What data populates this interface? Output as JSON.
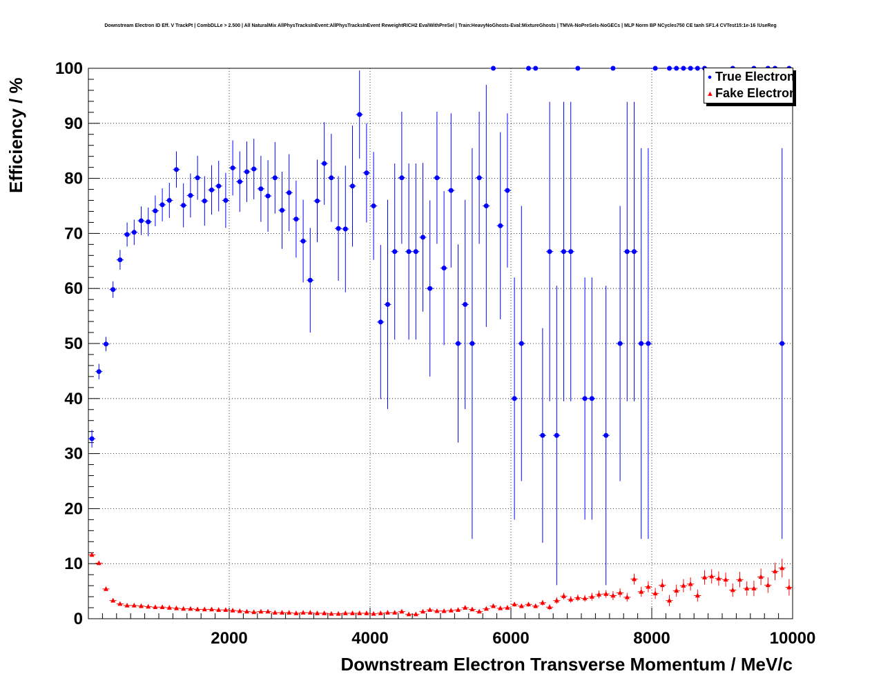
{
  "chart_data": {
    "type": "scatter",
    "title": "Downstream Electron ID Eff. V TrackPt | CombDLLe > 2.500 | All NaturalMix AllPhysTracksInEvent:AllPhysTracksInEvent ReweightRICH2 EvalWithPreSel | Train:HeavyNoGhosts-Eval:MixtureGhosts | TMVA-NoPreSels-NoGECs | MLP Norm BP NCycles750 CE tanh SF1.4 CVTest15:1e-16 !UseReg",
    "xlabel": "Downstream Electron Transverse Momentum / MeV/c",
    "ylabel": "Efficiency / %",
    "xlim": [
      0,
      10000
    ],
    "ylim": [
      0,
      100
    ],
    "x_ticks": [
      2000,
      4000,
      6000,
      8000,
      10000
    ],
    "y_ticks": [
      0,
      10,
      20,
      30,
      40,
      50,
      60,
      70,
      80,
      90,
      100
    ],
    "grid": true,
    "legend_position": "top-right",
    "bin_width": 100,
    "series": [
      {
        "name": "True Electron",
        "color": "#0000ff",
        "marker": "circle",
        "points": [
          {
            "x": 50,
            "y": 32.7,
            "err": 1.6
          },
          {
            "x": 150,
            "y": 44.9,
            "err": 1.4
          },
          {
            "x": 250,
            "y": 49.9,
            "err": 1.3
          },
          {
            "x": 350,
            "y": 59.8,
            "err": 1.5
          },
          {
            "x": 450,
            "y": 65.2,
            "err": 1.8
          },
          {
            "x": 550,
            "y": 69.8,
            "err": 2.2
          },
          {
            "x": 650,
            "y": 70.2,
            "err": 2.3
          },
          {
            "x": 750,
            "y": 72.3,
            "err": 2.6
          },
          {
            "x": 850,
            "y": 72.1,
            "err": 2.6
          },
          {
            "x": 950,
            "y": 74.1,
            "err": 2.8
          },
          {
            "x": 1050,
            "y": 75.2,
            "err": 3.0
          },
          {
            "x": 1150,
            "y": 76.0,
            "err": 3.2
          },
          {
            "x": 1250,
            "y": 81.6,
            "err": 3.3
          },
          {
            "x": 1350,
            "y": 75.1,
            "err": 4.0
          },
          {
            "x": 1450,
            "y": 76.9,
            "err": 4.0
          },
          {
            "x": 1550,
            "y": 80.1,
            "err": 4.0
          },
          {
            "x": 1650,
            "y": 75.9,
            "err": 4.5
          },
          {
            "x": 1750,
            "y": 77.9,
            "err": 4.5
          },
          {
            "x": 1850,
            "y": 78.6,
            "err": 4.6
          },
          {
            "x": 1950,
            "y": 76.0,
            "err": 5.0
          },
          {
            "x": 2050,
            "y": 81.9,
            "err": 5.0
          },
          {
            "x": 2150,
            "y": 79.4,
            "err": 5.5
          },
          {
            "x": 2250,
            "y": 81.2,
            "err": 5.5
          },
          {
            "x": 2350,
            "y": 81.7,
            "err": 5.5
          },
          {
            "x": 2450,
            "y": 78.1,
            "err": 6.0
          },
          {
            "x": 2550,
            "y": 76.8,
            "err": 6.5
          },
          {
            "x": 2650,
            "y": 80.1,
            "err": 6.5
          },
          {
            "x": 2750,
            "y": 74.2,
            "err": 7.0
          },
          {
            "x": 2850,
            "y": 77.4,
            "err": 7.0
          },
          {
            "x": 2950,
            "y": 72.6,
            "err": 7.0
          },
          {
            "x": 3050,
            "y": 68.6,
            "err": 7.5
          },
          {
            "x": 3150,
            "y": 61.5,
            "err": 9.5
          },
          {
            "x": 3250,
            "y": 75.9,
            "err": 7.5
          },
          {
            "x": 3350,
            "y": 82.7,
            "err": 7.5
          },
          {
            "x": 3450,
            "y": 80.1,
            "err": 8.0
          },
          {
            "x": 3550,
            "y": 70.9,
            "err": 9.5
          },
          {
            "x": 3650,
            "y": 70.8,
            "err": 11.5
          },
          {
            "x": 3750,
            "y": 78.6,
            "err": 11.0
          },
          {
            "x": 3850,
            "y": 91.6,
            "err": 8.0
          },
          {
            "x": 3950,
            "y": 81.0,
            "err": 9.0
          },
          {
            "x": 4050,
            "y": 75.0,
            "err": 9.8
          },
          {
            "x": 4150,
            "y": 53.9,
            "err": 14.0
          },
          {
            "x": 4250,
            "y": 57.1,
            "err": 19.0
          },
          {
            "x": 4350,
            "y": 66.7,
            "err": 16.0
          },
          {
            "x": 4450,
            "y": 80.1,
            "err": 12.0
          },
          {
            "x": 4550,
            "y": 66.7,
            "err": 16.0
          },
          {
            "x": 4650,
            "y": 66.7,
            "err": 16.0
          },
          {
            "x": 4750,
            "y": 69.3,
            "err": 13.5
          },
          {
            "x": 4850,
            "y": 60.0,
            "err": 16.0
          },
          {
            "x": 4950,
            "y": 80.1,
            "err": 12.0
          },
          {
            "x": 5050,
            "y": 63.7,
            "err": 14.0
          },
          {
            "x": 5150,
            "y": 77.8,
            "err": 14.0
          },
          {
            "x": 5250,
            "y": 50.0,
            "err": 18.0
          },
          {
            "x": 5350,
            "y": 57.1,
            "err": 19.0
          },
          {
            "x": 5450,
            "y": 50.0,
            "err": 35.5
          },
          {
            "x": 5550,
            "y": 80.1,
            "err": 12.0
          },
          {
            "x": 5650,
            "y": 75.0,
            "err": 22.0
          },
          {
            "x": 5750,
            "y": 100.0,
            "err": 0
          },
          {
            "x": 5850,
            "y": 71.4,
            "err": 17.0
          },
          {
            "x": 5950,
            "y": 77.8,
            "err": 14.0
          },
          {
            "x": 6050,
            "y": 40.0,
            "err": 22.0
          },
          {
            "x": 6150,
            "y": 50.0,
            "err": 25.0
          },
          {
            "x": 6250,
            "y": 100.0,
            "err": 0
          },
          {
            "x": 6350,
            "y": 100.0,
            "err": 0
          },
          {
            "x": 6450,
            "y": 33.3,
            "err": 19.5
          },
          {
            "x": 6550,
            "y": 66.7,
            "err": 27.2
          },
          {
            "x": 6650,
            "y": 33.3,
            "err": 27.2
          },
          {
            "x": 6750,
            "y": 66.7,
            "err": 27.2
          },
          {
            "x": 6850,
            "y": 66.7,
            "err": 27.2
          },
          {
            "x": 6950,
            "y": 100.0,
            "err": 0
          },
          {
            "x": 7050,
            "y": 40.0,
            "err": 22.0
          },
          {
            "x": 7150,
            "y": 40.0,
            "err": 22.0
          },
          {
            "x": 7350,
            "y": 33.3,
            "err": 27.2
          },
          {
            "x": 7450,
            "y": 100.0,
            "err": 0
          },
          {
            "x": 7550,
            "y": 50.0,
            "err": 25.0
          },
          {
            "x": 7650,
            "y": 66.7,
            "err": 27.2
          },
          {
            "x": 7750,
            "y": 66.7,
            "err": 27.2
          },
          {
            "x": 7850,
            "y": 50.0,
            "err": 35.5
          },
          {
            "x": 7950,
            "y": 50.0,
            "err": 35.5
          },
          {
            "x": 8050,
            "y": 100.0,
            "err": 0
          },
          {
            "x": 8250,
            "y": 100.0,
            "err": 0
          },
          {
            "x": 8350,
            "y": 100.0,
            "err": 0
          },
          {
            "x": 8450,
            "y": 100.0,
            "err": 0
          },
          {
            "x": 8550,
            "y": 100.0,
            "err": 0
          },
          {
            "x": 8650,
            "y": 100.0,
            "err": 0
          },
          {
            "x": 8750,
            "y": 100.0,
            "err": 0
          },
          {
            "x": 9150,
            "y": 100.0,
            "err": 0
          },
          {
            "x": 9450,
            "y": 100.0,
            "err": 0
          },
          {
            "x": 9650,
            "y": 100.0,
            "err": 0
          },
          {
            "x": 9750,
            "y": 100.0,
            "err": 0
          },
          {
            "x": 9850,
            "y": 50.0,
            "err": 35.5
          },
          {
            "x": 9950,
            "y": 100.0,
            "err": 0
          }
        ]
      },
      {
        "name": "Fake Electron",
        "color": "#ff0000",
        "marker": "triangle",
        "points": [
          {
            "x": 50,
            "y": 11.6,
            "err": 0.3
          },
          {
            "x": 150,
            "y": 10.1,
            "err": 0.3
          },
          {
            "x": 250,
            "y": 5.4,
            "err": 0.2
          },
          {
            "x": 350,
            "y": 3.3,
            "err": 0.15
          },
          {
            "x": 450,
            "y": 2.7,
            "err": 0.12
          },
          {
            "x": 550,
            "y": 2.4,
            "err": 0.1
          },
          {
            "x": 650,
            "y": 2.4,
            "err": 0.1
          },
          {
            "x": 750,
            "y": 2.3,
            "err": 0.1
          },
          {
            "x": 850,
            "y": 2.2,
            "err": 0.1
          },
          {
            "x": 950,
            "y": 2.1,
            "err": 0.1
          },
          {
            "x": 1050,
            "y": 2.1,
            "err": 0.1
          },
          {
            "x": 1150,
            "y": 2.0,
            "err": 0.1
          },
          {
            "x": 1250,
            "y": 1.9,
            "err": 0.1
          },
          {
            "x": 1350,
            "y": 1.8,
            "err": 0.1
          },
          {
            "x": 1450,
            "y": 1.8,
            "err": 0.1
          },
          {
            "x": 1550,
            "y": 1.7,
            "err": 0.1
          },
          {
            "x": 1650,
            "y": 1.7,
            "err": 0.1
          },
          {
            "x": 1750,
            "y": 1.7,
            "err": 0.1
          },
          {
            "x": 1850,
            "y": 1.6,
            "err": 0.1
          },
          {
            "x": 1950,
            "y": 1.6,
            "err": 0.1
          },
          {
            "x": 2050,
            "y": 1.5,
            "err": 0.1
          },
          {
            "x": 2150,
            "y": 1.4,
            "err": 0.1
          },
          {
            "x": 2250,
            "y": 1.3,
            "err": 0.1
          },
          {
            "x": 2350,
            "y": 1.2,
            "err": 0.1
          },
          {
            "x": 2450,
            "y": 1.3,
            "err": 0.1
          },
          {
            "x": 2550,
            "y": 1.3,
            "err": 0.1
          },
          {
            "x": 2650,
            "y": 1.1,
            "err": 0.1
          },
          {
            "x": 2750,
            "y": 1.1,
            "err": 0.1
          },
          {
            "x": 2850,
            "y": 1.1,
            "err": 0.1
          },
          {
            "x": 2950,
            "y": 1.0,
            "err": 0.1
          },
          {
            "x": 3050,
            "y": 1.1,
            "err": 0.1
          },
          {
            "x": 3150,
            "y": 1.1,
            "err": 0.1
          },
          {
            "x": 3250,
            "y": 1.0,
            "err": 0.1
          },
          {
            "x": 3350,
            "y": 1.0,
            "err": 0.1
          },
          {
            "x": 3450,
            "y": 0.9,
            "err": 0.1
          },
          {
            "x": 3550,
            "y": 0.9,
            "err": 0.1
          },
          {
            "x": 3650,
            "y": 1.0,
            "err": 0.1
          },
          {
            "x": 3750,
            "y": 1.0,
            "err": 0.1
          },
          {
            "x": 3850,
            "y": 1.0,
            "err": 0.1
          },
          {
            "x": 3950,
            "y": 1.0,
            "err": 0.1
          },
          {
            "x": 4050,
            "y": 0.9,
            "err": 0.1
          },
          {
            "x": 4150,
            "y": 1.0,
            "err": 0.1
          },
          {
            "x": 4250,
            "y": 1.1,
            "err": 0.1
          },
          {
            "x": 4350,
            "y": 1.1,
            "err": 0.1
          },
          {
            "x": 4450,
            "y": 1.3,
            "err": 0.2
          },
          {
            "x": 4550,
            "y": 0.8,
            "err": 0.2
          },
          {
            "x": 4650,
            "y": 0.8,
            "err": 0.2
          },
          {
            "x": 4750,
            "y": 1.3,
            "err": 0.2
          },
          {
            "x": 4850,
            "y": 1.6,
            "err": 0.2
          },
          {
            "x": 4950,
            "y": 1.4,
            "err": 0.2
          },
          {
            "x": 5050,
            "y": 1.4,
            "err": 0.2
          },
          {
            "x": 5150,
            "y": 1.5,
            "err": 0.2
          },
          {
            "x": 5250,
            "y": 1.6,
            "err": 0.2
          },
          {
            "x": 5350,
            "y": 2.0,
            "err": 0.3
          },
          {
            "x": 5450,
            "y": 1.7,
            "err": 0.3
          },
          {
            "x": 5550,
            "y": 1.3,
            "err": 0.3
          },
          {
            "x": 5650,
            "y": 1.8,
            "err": 0.3
          },
          {
            "x": 5750,
            "y": 2.3,
            "err": 0.3
          },
          {
            "x": 5850,
            "y": 1.9,
            "err": 0.3
          },
          {
            "x": 5950,
            "y": 2.0,
            "err": 0.4
          },
          {
            "x": 6050,
            "y": 2.6,
            "err": 0.4
          },
          {
            "x": 6150,
            "y": 2.3,
            "err": 0.4
          },
          {
            "x": 6250,
            "y": 2.6,
            "err": 0.4
          },
          {
            "x": 6350,
            "y": 2.3,
            "err": 0.4
          },
          {
            "x": 6450,
            "y": 2.9,
            "err": 0.5
          },
          {
            "x": 6550,
            "y": 2.1,
            "err": 0.5
          },
          {
            "x": 6650,
            "y": 3.3,
            "err": 0.6
          },
          {
            "x": 6750,
            "y": 4.1,
            "err": 0.6
          },
          {
            "x": 6850,
            "y": 3.5,
            "err": 0.6
          },
          {
            "x": 6950,
            "y": 3.8,
            "err": 0.6
          },
          {
            "x": 7050,
            "y": 3.7,
            "err": 0.6
          },
          {
            "x": 7150,
            "y": 4.0,
            "err": 0.7
          },
          {
            "x": 7250,
            "y": 4.4,
            "err": 0.7
          },
          {
            "x": 7350,
            "y": 4.5,
            "err": 0.7
          },
          {
            "x": 7450,
            "y": 4.2,
            "err": 0.8
          },
          {
            "x": 7550,
            "y": 4.7,
            "err": 0.8
          },
          {
            "x": 7650,
            "y": 3.9,
            "err": 0.8
          },
          {
            "x": 7750,
            "y": 7.2,
            "err": 1.0
          },
          {
            "x": 7850,
            "y": 4.9,
            "err": 0.9
          },
          {
            "x": 7950,
            "y": 5.8,
            "err": 1.0
          },
          {
            "x": 8050,
            "y": 4.6,
            "err": 1.0
          },
          {
            "x": 8150,
            "y": 6.1,
            "err": 1.1
          },
          {
            "x": 8250,
            "y": 3.3,
            "err": 1.0
          },
          {
            "x": 8350,
            "y": 5.1,
            "err": 1.1
          },
          {
            "x": 8450,
            "y": 6.0,
            "err": 1.2
          },
          {
            "x": 8550,
            "y": 6.3,
            "err": 1.2
          },
          {
            "x": 8650,
            "y": 4.2,
            "err": 1.1
          },
          {
            "x": 8750,
            "y": 7.5,
            "err": 1.3
          },
          {
            "x": 8850,
            "y": 7.7,
            "err": 1.3
          },
          {
            "x": 8950,
            "y": 7.3,
            "err": 1.3
          },
          {
            "x": 9050,
            "y": 7.1,
            "err": 1.3
          },
          {
            "x": 9150,
            "y": 5.2,
            "err": 1.2
          },
          {
            "x": 9250,
            "y": 7.1,
            "err": 1.4
          },
          {
            "x": 9350,
            "y": 5.5,
            "err": 1.3
          },
          {
            "x": 9450,
            "y": 5.5,
            "err": 1.4
          },
          {
            "x": 9550,
            "y": 7.6,
            "err": 1.5
          },
          {
            "x": 9650,
            "y": 6.1,
            "err": 1.4
          },
          {
            "x": 9750,
            "y": 8.6,
            "err": 1.6
          },
          {
            "x": 9850,
            "y": 9.2,
            "err": 1.7
          },
          {
            "x": 9950,
            "y": 5.7,
            "err": 1.5
          }
        ]
      }
    ]
  }
}
